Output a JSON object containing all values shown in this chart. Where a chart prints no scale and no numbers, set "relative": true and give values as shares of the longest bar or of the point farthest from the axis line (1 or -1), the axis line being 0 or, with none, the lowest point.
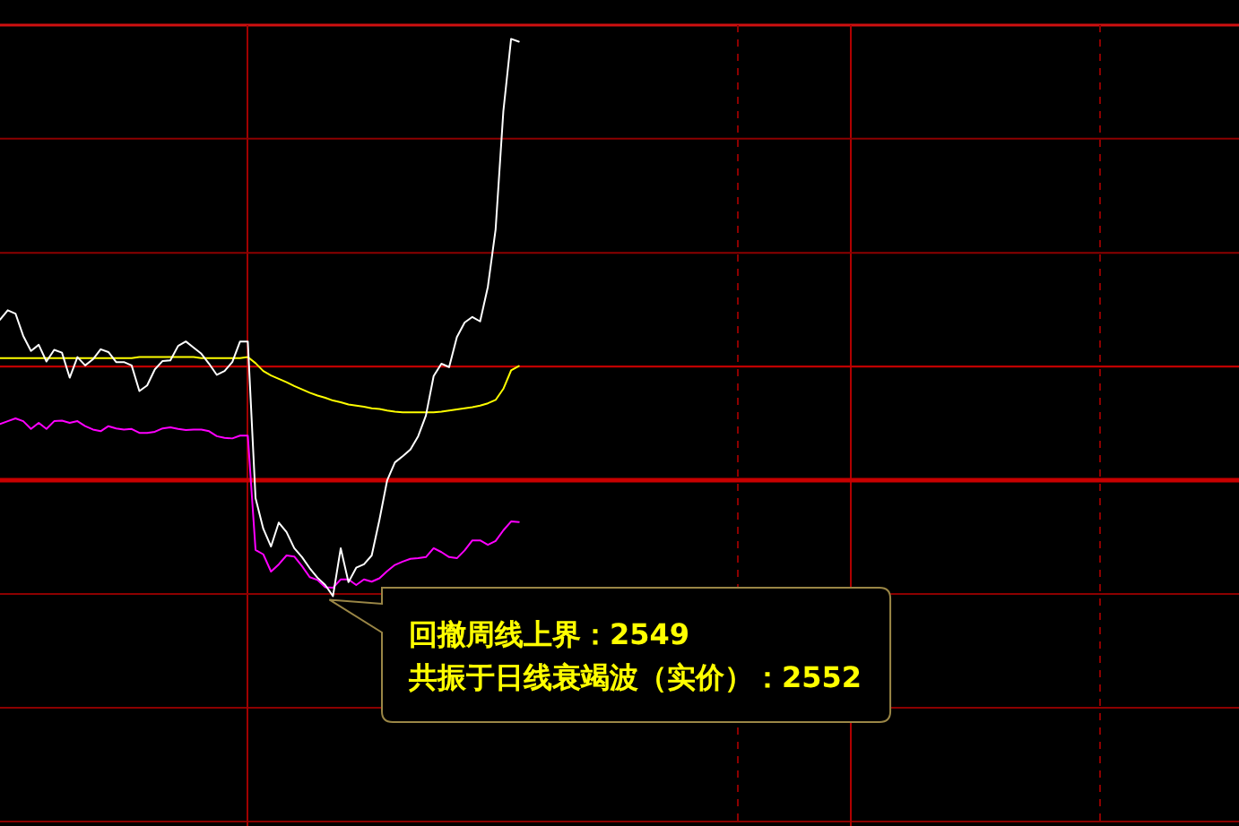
{
  "chart_data": {
    "type": "line",
    "relative": true,
    "grid": true,
    "categories": [
      null,
      null,
      null,
      null,
      null,
      null,
      null,
      null,
      null,
      null,
      null,
      null,
      null,
      null,
      null,
      null,
      null,
      null,
      null,
      null,
      null,
      null,
      null,
      null,
      null,
      null,
      null,
      null,
      null,
      null,
      null,
      null,
      null,
      null,
      null,
      null,
      null,
      null,
      null,
      null,
      null,
      null,
      null,
      null,
      null,
      null,
      null,
      null,
      null,
      null,
      null,
      null,
      null,
      null,
      null,
      null,
      null,
      null,
      null,
      null,
      null,
      null,
      null,
      null,
      null,
      null,
      null,
      null,
      null,
      null,
      null,
      null,
      null,
      null,
      null,
      null,
      null,
      null,
      null,
      null,
      null,
      null,
      null,
      null,
      null,
      null,
      null,
      null,
      null,
      null,
      null,
      null,
      null,
      null,
      null,
      null,
      null,
      null,
      null,
      null,
      null,
      null,
      null,
      null,
      null,
      null,
      null,
      null,
      null,
      null,
      null,
      null,
      null,
      null,
      null,
      null,
      null,
      null,
      null,
      null,
      null,
      null,
      null,
      null,
      null,
      null,
      null,
      null,
      null,
      null,
      null,
      null,
      null,
      null,
      null,
      null,
      null,
      null,
      null,
      null,
      null,
      null,
      null,
      null,
      null,
      null,
      null,
      null,
      null,
      null,
      null,
      null,
      null,
      null,
      null,
      null,
      null,
      null,
      null,
      null,
      null
    ],
    "series": [
      {
        "color": "#ffff00",
        "values": [
          0.427,
          0.427,
          0.427,
          0.427,
          0.427,
          0.427,
          0.427,
          0.427,
          0.427,
          0.427,
          0.427,
          0.427,
          0.427,
          0.427,
          0.427,
          0.427,
          0.427,
          0.427,
          0.429,
          0.429,
          0.429,
          0.429,
          0.429,
          0.429,
          0.429,
          0.429,
          0.427,
          0.427,
          0.427,
          0.427,
          0.427,
          0.427,
          0.429,
          0.418,
          0.404,
          0.396,
          0.39,
          0.384,
          0.377,
          0.371,
          0.365,
          0.36,
          0.356,
          0.351,
          0.348,
          0.344,
          0.342,
          0.34,
          0.337,
          0.336,
          0.333,
          0.331,
          0.33,
          0.33,
          0.33,
          0.33,
          0.33,
          0.331,
          0.333,
          0.335,
          0.337,
          0.339,
          0.342,
          0.346,
          0.352,
          0.372,
          0.405,
          0.413,
          null,
          null,
          null,
          null,
          null,
          null,
          null,
          null,
          null,
          null,
          null,
          null,
          null,
          null,
          null,
          null,
          null,
          null,
          null,
          null,
          null,
          null,
          null,
          null,
          null,
          null,
          null,
          null,
          null,
          null,
          null,
          null,
          null,
          null,
          null,
          null,
          null,
          null,
          null,
          null,
          null,
          null,
          null,
          null,
          null,
          null,
          null,
          null,
          null,
          null,
          null,
          null,
          null,
          null,
          null,
          null,
          null,
          null,
          null,
          null,
          null,
          null,
          null,
          null,
          null,
          null,
          null,
          null,
          null,
          null,
          null,
          null,
          null,
          null,
          null,
          null,
          null,
          null,
          null,
          null,
          null,
          null,
          null,
          null,
          null,
          null,
          null,
          null,
          null,
          null,
          null,
          null,
          null
        ]
      },
      {
        "color": "#ff00ff",
        "values": [
          0.309,
          0.314,
          0.319,
          0.314,
          0.3,
          0.311,
          0.3,
          0.314,
          0.315,
          0.311,
          0.314,
          0.305,
          0.299,
          0.296,
          0.305,
          0.301,
          0.299,
          0.3,
          0.293,
          0.293,
          0.295,
          0.301,
          0.303,
          0.3,
          0.298,
          0.299,
          0.299,
          0.296,
          0.287,
          0.284,
          0.283,
          0.288,
          0.288,
          0.083,
          0.075,
          0.044,
          0.057,
          0.073,
          0.071,
          0.054,
          0.034,
          0.029,
          0.016,
          0.015,
          0.03,
          0.03,
          0.02,
          0.03,
          0.026,
          0.032,
          0.045,
          0.056,
          0.062,
          0.067,
          0.068,
          0.07,
          0.086,
          0.079,
          0.07,
          0.068,
          0.082,
          0.1,
          0.1,
          0.092,
          0.099,
          0.118,
          0.134,
          0.133,
          null,
          null,
          null,
          null,
          null,
          null,
          null,
          null,
          null,
          null,
          null,
          null,
          null,
          null,
          null,
          null,
          null,
          null,
          null,
          null,
          null,
          null,
          null,
          null,
          null,
          null,
          null,
          null,
          null,
          null,
          null,
          null,
          null,
          null,
          null,
          null,
          null,
          null,
          null,
          null,
          null,
          null,
          null,
          null,
          null,
          null,
          null,
          null,
          null,
          null,
          null,
          null,
          null,
          null,
          null,
          null,
          null,
          null,
          null,
          null,
          null,
          null,
          null,
          null,
          null,
          null,
          null,
          null,
          null,
          null,
          null,
          null,
          null,
          null,
          null,
          null,
          null,
          null,
          null,
          null,
          null,
          null,
          null,
          null,
          null,
          null,
          null,
          null,
          null,
          null,
          null,
          null,
          null
        ]
      },
      {
        "color": "#ffffff",
        "values": [
          0.496,
          0.513,
          0.507,
          0.467,
          0.44,
          0.451,
          0.421,
          0.442,
          0.437,
          0.392,
          0.429,
          0.414,
          0.425,
          0.443,
          0.438,
          0.42,
          0.42,
          0.414,
          0.368,
          0.378,
          0.407,
          0.422,
          0.423,
          0.449,
          0.457,
          0.446,
          0.435,
          0.417,
          0.397,
          0.404,
          0.42,
          0.457,
          0.457,
          0.176,
          0.121,
          0.089,
          0.132,
          0.115,
          0.086,
          0.07,
          0.05,
          0.033,
          0.02,
          0,
          0.086,
          0.025,
          0.051,
          0.057,
          0.073,
          0.137,
          0.208,
          0.24,
          0.251,
          0.263,
          0.287,
          0.324,
          0.395,
          0.417,
          0.411,
          0.465,
          0.491,
          0.501,
          0.493,
          0.555,
          0.658,
          0.87,
          1,
          0.995,
          null,
          null,
          null,
          null,
          null,
          null,
          null,
          null,
          null,
          null,
          null,
          null,
          null,
          null,
          null,
          null,
          null,
          null,
          null,
          null,
          null,
          null,
          null,
          null,
          null,
          null,
          null,
          null,
          null,
          null,
          null,
          null,
          null,
          null,
          null,
          null,
          null,
          null,
          null,
          null,
          null,
          null,
          null,
          null,
          null,
          null,
          null,
          null,
          null,
          null,
          null,
          null,
          null,
          null,
          null,
          null,
          null,
          null,
          null,
          null,
          null,
          null,
          null,
          null,
          null,
          null,
          null,
          null,
          null,
          null,
          null,
          null,
          null,
          null,
          null,
          null,
          null,
          null,
          null,
          null,
          null,
          null,
          null,
          null,
          null,
          null,
          null,
          null,
          null,
          null,
          null,
          null,
          null
        ]
      }
    ],
    "ref_lines": [
      {
        "axis": "y",
        "value": 0.821,
        "color": "#8c0000"
      },
      {
        "axis": "y",
        "value": 0.616,
        "color": "#8c0000"
      },
      {
        "axis": "y",
        "value": 0.412,
        "color": "#c00000"
      },
      {
        "axis": "y",
        "value": 0.208,
        "color": "#c80000"
      },
      {
        "axis": "y",
        "value": 0.004,
        "color": "#8c0000"
      }
    ],
    "annotations": [
      "回撤周线上界：2549",
      "共振于日线衰竭波（实价）：2552"
    ]
  }
}
